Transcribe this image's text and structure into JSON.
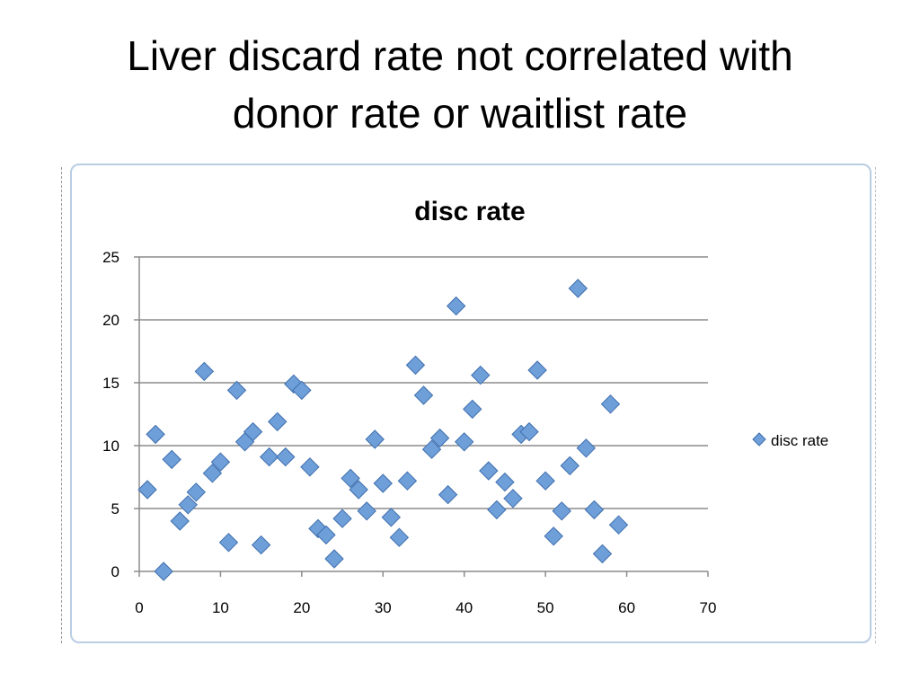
{
  "slide": {
    "title": "Liver discard rate not correlated with\ndonor rate or waitlist rate"
  },
  "colors": {
    "marker_fill": "#6f9fd8",
    "marker_stroke": "#3f6fae",
    "gridline": "#8c8c8c",
    "frame_border": "#b9cde3"
  },
  "chart_data": {
    "type": "scatter",
    "title": "disc rate",
    "xlabel": "",
    "ylabel": "",
    "xlim": [
      0,
      70
    ],
    "ylim": [
      0,
      25
    ],
    "xticks": [
      0,
      10,
      20,
      30,
      40,
      50,
      60,
      70
    ],
    "yticks": [
      0,
      5,
      10,
      15,
      20,
      25
    ],
    "grid": "horizontal",
    "legend": {
      "position": "right",
      "entries": [
        "disc rate"
      ]
    },
    "series": [
      {
        "name": "disc rate",
        "marker": "diamond",
        "points": [
          [
            1,
            6.5
          ],
          [
            2,
            10.9
          ],
          [
            3,
            0.0
          ],
          [
            4,
            8.9
          ],
          [
            5,
            4.0
          ],
          [
            6,
            5.3
          ],
          [
            7,
            6.3
          ],
          [
            8,
            15.9
          ],
          [
            9,
            7.8
          ],
          [
            10,
            8.7
          ],
          [
            11,
            2.3
          ],
          [
            12,
            14.4
          ],
          [
            13,
            10.3
          ],
          [
            14,
            11.1
          ],
          [
            15,
            2.1
          ],
          [
            16,
            9.1
          ],
          [
            17,
            11.9
          ],
          [
            18,
            9.1
          ],
          [
            19,
            14.9
          ],
          [
            20,
            14.4
          ],
          [
            21,
            8.3
          ],
          [
            22,
            3.4
          ],
          [
            23,
            2.9
          ],
          [
            24,
            1.0
          ],
          [
            25,
            4.2
          ],
          [
            26,
            7.4
          ],
          [
            27,
            6.5
          ],
          [
            28,
            4.8
          ],
          [
            29,
            10.5
          ],
          [
            30,
            7.0
          ],
          [
            31,
            4.3
          ],
          [
            32,
            2.7
          ],
          [
            33,
            7.2
          ],
          [
            34,
            16.4
          ],
          [
            35,
            14.0
          ],
          [
            36,
            9.7
          ],
          [
            37,
            10.6
          ],
          [
            38,
            6.1
          ],
          [
            39,
            21.1
          ],
          [
            40,
            10.3
          ],
          [
            41,
            12.9
          ],
          [
            42,
            15.6
          ],
          [
            43,
            8.0
          ],
          [
            44,
            4.9
          ],
          [
            45,
            7.1
          ],
          [
            46,
            5.8
          ],
          [
            47,
            10.9
          ],
          [
            48,
            11.1
          ],
          [
            49,
            16.0
          ],
          [
            50,
            7.2
          ],
          [
            51,
            2.8
          ],
          [
            52,
            4.8
          ],
          [
            53,
            8.4
          ],
          [
            54,
            22.5
          ],
          [
            55,
            9.8
          ],
          [
            56,
            4.9
          ],
          [
            57,
            1.4
          ],
          [
            58,
            13.3
          ],
          [
            59,
            3.7
          ]
        ]
      }
    ]
  }
}
